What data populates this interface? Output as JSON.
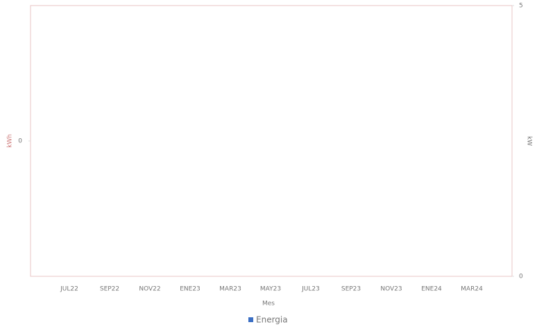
{
  "chart_data": {
    "type": "bar",
    "x_label": "Mes",
    "y_label": "kWh",
    "y2_label": "kW",
    "categories": [
      "JUL22",
      "SEP22",
      "NOV22",
      "ENE23",
      "MAR23",
      "MAY23",
      "JUL23",
      "SEP23",
      "NOV23",
      "ENE24",
      "MAR24"
    ],
    "series": [
      {
        "name": "Energia",
        "color": "#3b6fc4",
        "values": [
          0,
          0,
          0,
          0,
          0,
          0,
          0,
          0,
          0,
          0,
          0
        ]
      }
    ],
    "ylim": [
      -1,
      1
    ],
    "yticks": [
      0
    ],
    "y2lim": [
      0,
      5
    ],
    "y2ticks": [
      0,
      5
    ],
    "legend": "bottom"
  }
}
